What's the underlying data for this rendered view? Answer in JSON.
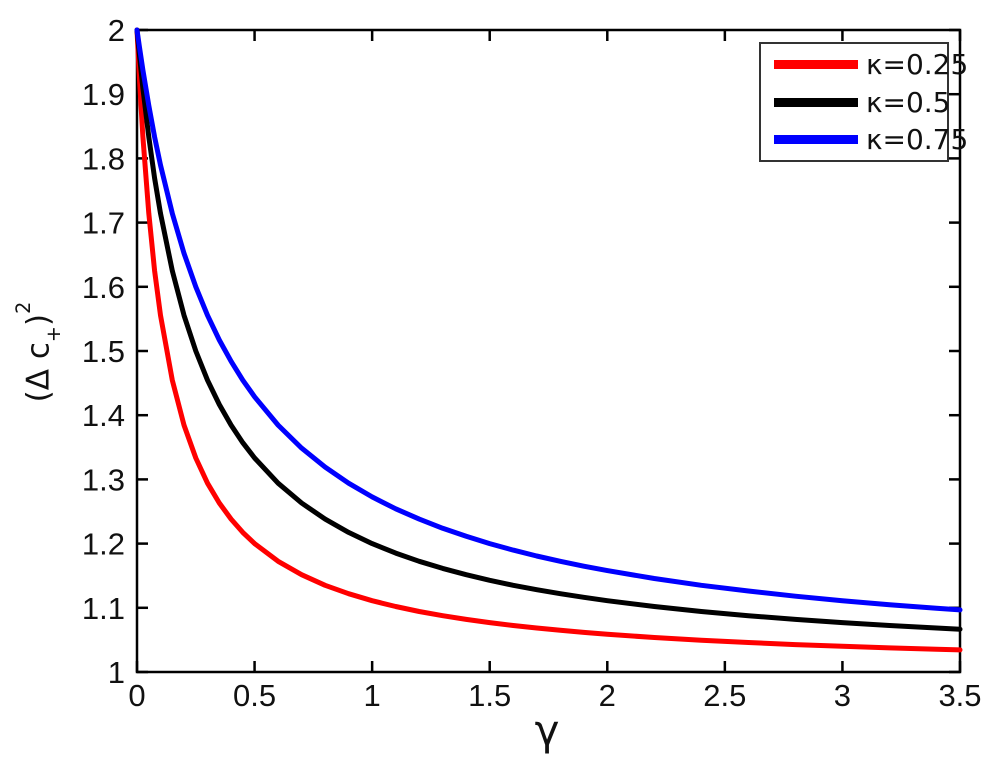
{
  "figure": {
    "background": "#ffffff",
    "axis_color": "#000000",
    "text_color": "#111111",
    "legend_border_color": "#333333"
  },
  "chart_data": {
    "type": "line",
    "title": "",
    "xlabel": "γ",
    "ylabel": "(Δ c+)²",
    "ylabel_parts": {
      "prefix": "(Δ c",
      "sub": "+",
      "suffix": ")",
      "sup": "2"
    },
    "xlim": [
      0,
      3.5
    ],
    "ylim": [
      1,
      2
    ],
    "xtick_labels": [
      "0",
      "0.5",
      "1",
      "1.5",
      "2",
      "2.5",
      "3",
      "3.5"
    ],
    "ytick_labels": [
      "1",
      "1.1",
      "1.2",
      "1.3",
      "1.4",
      "1.5",
      "1.6",
      "1.7",
      "1.8",
      "1.9",
      "2"
    ],
    "grid": false,
    "legend_position": "top-right",
    "x": [
      0,
      0.01,
      0.025,
      0.05,
      0.075,
      0.1,
      0.15,
      0.2,
      0.25,
      0.3,
      0.35,
      0.4,
      0.45,
      0.5,
      0.6,
      0.7,
      0.8,
      0.9,
      1,
      1.1,
      1.2,
      1.3,
      1.4,
      1.5,
      1.6,
      1.7,
      1.8,
      1.9,
      2,
      2.2,
      2.4,
      2.6,
      2.8,
      3,
      3.2,
      3.4,
      3.5
    ],
    "series": [
      {
        "name": "κ=0.25",
        "color": "#ff0000",
        "values": [
          2,
          1.9259,
          1.8333,
          1.7143,
          1.625,
          1.5556,
          1.4545,
          1.3846,
          1.3333,
          1.2941,
          1.2632,
          1.2381,
          1.2174,
          1.2,
          1.1724,
          1.1515,
          1.1351,
          1.122,
          1.1111,
          1.102,
          1.0943,
          1.0877,
          1.082,
          1.0769,
          1.0725,
          1.0685,
          1.0649,
          1.0617,
          1.0588,
          1.0538,
          1.0495,
          1.0459,
          1.0427,
          1.04,
          1.0376,
          1.0355,
          1.0345
        ]
      },
      {
        "name": "κ=0.5",
        "color": "#000000",
        "values": [
          2,
          1.9615,
          1.9091,
          1.8333,
          1.7692,
          1.7143,
          1.625,
          1.5556,
          1.5,
          1.4545,
          1.4167,
          1.3846,
          1.3571,
          1.3333,
          1.2941,
          1.2632,
          1.2381,
          1.2174,
          1.2,
          1.1852,
          1.1724,
          1.1613,
          1.1515,
          1.1429,
          1.1351,
          1.1282,
          1.122,
          1.1163,
          1.1111,
          1.102,
          1.0943,
          1.0877,
          1.082,
          1.0769,
          1.0725,
          1.0685,
          1.0667
        ]
      },
      {
        "name": "κ=0.75",
        "color": "#0000ff",
        "values": [
          2,
          1.974,
          1.9375,
          1.8824,
          1.8333,
          1.7895,
          1.7143,
          1.6522,
          1.6,
          1.5556,
          1.5172,
          1.4839,
          1.4545,
          1.4286,
          1.3846,
          1.3488,
          1.3191,
          1.2941,
          1.2727,
          1.2542,
          1.2381,
          1.2239,
          1.2113,
          1.2,
          1.1899,
          1.1807,
          1.1724,
          1.1648,
          1.1579,
          1.1456,
          1.1351,
          1.1261,
          1.1181,
          1.1111,
          1.1049,
          1.0993,
          1.0968
        ]
      }
    ]
  }
}
